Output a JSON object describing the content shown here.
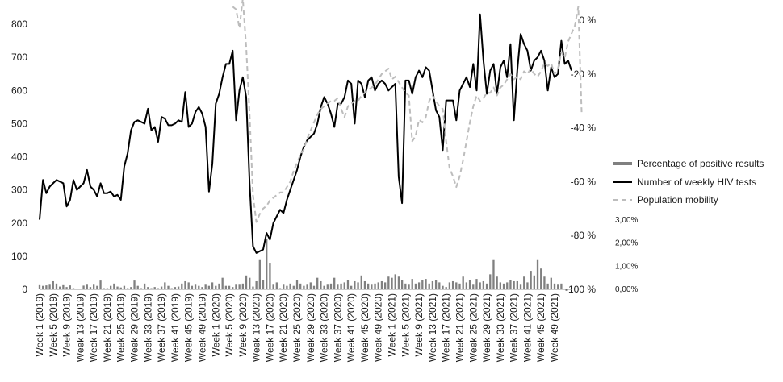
{
  "chart_data": {
    "type": "line",
    "title": "",
    "xlabel": "",
    "ylabel": "",
    "grid": false,
    "legend_position": "right",
    "ylim": [
      0,
      800
    ],
    "y_ticks": [
      "0",
      "100",
      "200",
      "300",
      "400",
      "500",
      "600",
      "700",
      "800"
    ],
    "y2_ticks": [
      "0 %",
      "-20 %",
      "-40 %",
      "-60 %",
      "-80 %",
      "-100 %"
    ],
    "y2_range": [
      -100,
      0
    ],
    "y3_ticks": [
      "0,00%",
      "1,00%",
      "2,00%",
      "3,00%"
    ],
    "y3_range": [
      0,
      3
    ],
    "x_tick_labels": [
      "Week 1 (2019)",
      "Week 5 (2019)",
      "Week 9 (2019)",
      "Week 13 (2019)",
      "Week 17 (2019)",
      "Week 21 (2019)",
      "Week 25 (2019)",
      "Week 29 (2019)",
      "Week 33 (2019)",
      "Week 37 (2019)",
      "Week 41 (2019)",
      "Week 45 (2019)",
      "Week 49 (2019)",
      "Week 1 (2020)",
      "Week 5 (2020)",
      "Week 9 (2020)",
      "Week 13 (2020)",
      "Week 17 (2020)",
      "Week 21 (2020)",
      "Week 25 (2020)",
      "Week 29 (2020)",
      "Week 33 (2020)",
      "Week 37 (2020)",
      "Week 41 (2020)",
      "Week 45 (2020)",
      "Week 49 (2020)",
      "Week 1 (2021)",
      "Week 5 (2021)",
      "Week 9 (2021)",
      "Week 13 (2021)",
      "Week 17 (2021)",
      "Week 21 (2021)",
      "Week 25 (2021)",
      "Week 29 (2021)",
      "Week 33 (2021)",
      "Week 37 (2021)",
      "Week 41 (2021)",
      "Week 45 (2021)",
      "Week 49 (2021)"
    ],
    "x_tick_week_index": [
      0,
      4,
      8,
      12,
      16,
      20,
      24,
      28,
      32,
      36,
      40,
      44,
      48,
      52,
      56,
      60,
      64,
      68,
      72,
      76,
      80,
      84,
      88,
      92,
      96,
      100,
      104,
      108,
      112,
      116,
      120,
      124,
      128,
      132,
      136,
      140,
      144,
      148,
      152
    ],
    "series": [
      {
        "name": "Percentage of positive results",
        "type": "bar",
        "axis": "right-percent-small",
        "color": "#808080",
        "values": [
          0.18,
          0.15,
          0.17,
          0.2,
          0.35,
          0.25,
          0.12,
          0.18,
          0.1,
          0.17,
          0.05,
          0,
          0,
          0.16,
          0.2,
          0.1,
          0.2,
          0.15,
          0.38,
          0.05,
          0.05,
          0.15,
          0.25,
          0.12,
          0.08,
          0.15,
          0.05,
          0.1,
          0.38,
          0.15,
          0.05,
          0.25,
          0.1,
          0.05,
          0.1,
          0.05,
          0.12,
          0.3,
          0.15,
          0.05,
          0.1,
          0.12,
          0.25,
          0.35,
          0.3,
          0.15,
          0.2,
          0.15,
          0.1,
          0.2,
          0.15,
          0.3,
          0.15,
          0.25,
          0.5,
          0.15,
          0.15,
          0.1,
          0.2,
          0.2,
          0.25,
          0.6,
          0.5,
          0.12,
          0.35,
          1.3,
          0.4,
          2.2,
          1.15,
          0.2,
          0.3,
          0.05,
          0.2,
          0.15,
          0.25,
          0.15,
          0.4,
          0.25,
          0.15,
          0.2,
          0.3,
          0.15,
          0.5,
          0.35,
          0.15,
          0.2,
          0.25,
          0.5,
          0.2,
          0.25,
          0.3,
          0.4,
          0.15,
          0.35,
          0.3,
          0.6,
          0.35,
          0.25,
          0.2,
          0.25,
          0.3,
          0.35,
          0.3,
          0.55,
          0.5,
          0.65,
          0.55,
          0.4,
          0.25,
          0.2,
          0.45,
          0.25,
          0.3,
          0.4,
          0.45,
          0.25,
          0.35,
          0.4,
          0.3,
          0.15,
          0.1,
          0.3,
          0.35,
          0.3,
          0.25,
          0.55,
          0.3,
          0.4,
          0.2,
          0.45,
          0.3,
          0.35,
          0.25,
          0.65,
          1.3,
          0.55,
          0.3,
          0.25,
          0.3,
          0.4,
          0.35,
          0.35,
          0.2,
          0.55,
          0.3,
          0.8,
          0.6,
          1.3,
          0.9,
          0.55,
          0.25,
          0.5,
          0.25,
          0.2,
          0.25
        ]
      },
      {
        "name": "Number of weekly HIV tests",
        "type": "line",
        "axis": "left",
        "color": "#000000",
        "values": [
          210,
          330,
          290,
          310,
          320,
          330,
          325,
          320,
          250,
          270,
          330,
          300,
          310,
          320,
          360,
          310,
          300,
          280,
          320,
          290,
          290,
          295,
          280,
          285,
          270,
          370,
          410,
          480,
          505,
          510,
          505,
          500,
          545,
          480,
          490,
          445,
          520,
          515,
          495,
          495,
          500,
          510,
          505,
          595,
          490,
          500,
          535,
          550,
          530,
          490,
          295,
          380,
          560,
          590,
          640,
          680,
          680,
          720,
          510,
          600,
          640,
          580,
          320,
          130,
          110,
          115,
          120,
          170,
          150,
          200,
          220,
          240,
          230,
          270,
          300,
          330,
          360,
          400,
          430,
          450,
          460,
          470,
          500,
          550,
          580,
          560,
          530,
          490,
          560,
          560,
          580,
          630,
          620,
          500,
          630,
          620,
          580,
          630,
          640,
          600,
          620,
          630,
          620,
          600,
          610,
          620,
          340,
          260,
          630,
          630,
          590,
          640,
          660,
          640,
          670,
          660,
          600,
          540,
          520,
          420,
          570,
          570,
          570,
          510,
          600,
          620,
          640,
          610,
          680,
          600,
          830,
          690,
          590,
          660,
          680,
          590,
          670,
          690,
          640,
          740,
          510,
          660,
          770,
          740,
          720,
          660,
          690,
          700,
          720,
          690,
          600,
          670,
          640,
          650,
          750,
          680,
          690,
          660
        ]
      },
      {
        "name": "Population mobility",
        "type": "line",
        "axis": "right-percent",
        "color": "#bdbdbd",
        "x_start_index": 57,
        "values": [
          5,
          4,
          -3,
          8,
          -10,
          -35,
          -65,
          -75,
          -72,
          -70,
          -69,
          -67,
          -66,
          -65,
          -64,
          -64,
          -62,
          -60,
          -56,
          -53,
          -50,
          -48,
          -44,
          -41,
          -38,
          -35,
          -33,
          -32,
          -31,
          -30,
          -30,
          -29,
          -33,
          -36,
          -32,
          -31,
          -30,
          -30,
          -28,
          -27,
          -26,
          -25,
          -24,
          -22,
          -20,
          -19,
          -18,
          -22,
          -21,
          -23,
          -25,
          -27,
          -28,
          -45,
          -43,
          -37,
          -38,
          -36,
          -30,
          -28,
          -30,
          -32,
          -33,
          -45,
          -55,
          -58,
          -62,
          -58,
          -52,
          -45,
          -38,
          -32,
          -28,
          -30,
          -29,
          -27,
          -27,
          -25,
          -28,
          -25,
          -24,
          -22,
          -20,
          -22,
          -21,
          -22,
          -19,
          -20,
          -18,
          -20,
          -21,
          -19,
          -16,
          -17,
          -16,
          -20,
          -18,
          -12,
          -14,
          -8,
          -5,
          -2,
          5,
          -35
        ]
      }
    ]
  }
}
